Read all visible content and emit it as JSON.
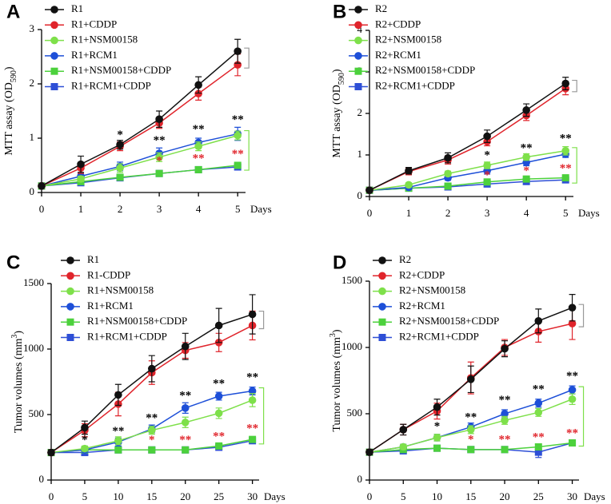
{
  "chart_data": [
    {
      "type": "line",
      "panel_label": "A",
      "y_label": [
        "MTT assay (OD",
        "590",
        ")"
      ],
      "x_label": "Days",
      "x": [
        0,
        1,
        2,
        3,
        4,
        5
      ],
      "xlim": [
        0,
        5.2
      ],
      "xticks": [
        0,
        1,
        2,
        3,
        4,
        5
      ],
      "ylim": [
        0,
        3
      ],
      "yticks": [
        0,
        1,
        2,
        3
      ],
      "series": [
        {
          "name": "R1",
          "color": "#111111",
          "marker": "circle",
          "values": [
            0.12,
            0.52,
            0.88,
            1.35,
            1.98,
            2.6
          ],
          "errors": [
            0.03,
            0.15,
            0.08,
            0.15,
            0.15,
            0.22
          ]
        },
        {
          "name": "R1+CDDP",
          "color": "#e0242b",
          "marker": "circle",
          "values": [
            0.12,
            0.45,
            0.85,
            1.28,
            1.82,
            2.35
          ],
          "errors": [
            0.03,
            0.1,
            0.08,
            0.1,
            0.12,
            0.2
          ]
        },
        {
          "name": "R1+NSM00158",
          "color": "#7ee04a",
          "marker": "circle",
          "values": [
            0.12,
            0.25,
            0.45,
            0.65,
            0.85,
            1.05
          ],
          "errors": [
            0.02,
            0.05,
            0.08,
            0.08,
            0.08,
            0.08
          ]
        },
        {
          "name": "R1+RCM1",
          "color": "#1d4fd8",
          "marker": "circle",
          "values": [
            0.12,
            0.3,
            0.48,
            0.72,
            0.92,
            1.08
          ],
          "errors": [
            0.02,
            0.06,
            0.08,
            0.1,
            0.08,
            0.12
          ]
        },
        {
          "name": "R1+NSM00158+CDDP",
          "color": "#4cd13c",
          "marker": "square",
          "values": [
            0.12,
            0.2,
            0.28,
            0.35,
            0.42,
            0.5
          ],
          "errors": [
            0.02,
            0.03,
            0.04,
            0.04,
            0.05,
            0.05
          ]
        },
        {
          "name": "R1+RCM1+CDDP",
          "color": "#2e4fd6",
          "marker": "square",
          "values": [
            0.12,
            0.18,
            0.27,
            0.35,
            0.42,
            0.47
          ],
          "errors": [
            0.02,
            0.03,
            0.04,
            0.04,
            0.04,
            0.04
          ]
        }
      ],
      "annotations": [
        {
          "text": "*",
          "x": 2,
          "y": 1.05,
          "color": "#000000"
        },
        {
          "text": "**",
          "x": 3,
          "y": 0.95,
          "color": "#000000"
        },
        {
          "text": "**",
          "x": 4,
          "y": 1.15,
          "color": "#000000"
        },
        {
          "text": "**",
          "x": 5,
          "y": 1.33,
          "color": "#000000"
        },
        {
          "text": "*",
          "x": 3,
          "y": 0.57,
          "color": "#e0242b"
        },
        {
          "text": "**",
          "x": 4,
          "y": 0.62,
          "color": "#e0242b"
        },
        {
          "text": "**",
          "x": 5,
          "y": 0.7,
          "color": "#e0242b"
        }
      ]
    },
    {
      "type": "line",
      "panel_label": "B",
      "y_label": [
        "MTT assay (OD",
        "590",
        ")"
      ],
      "x_label": "Days",
      "x": [
        0,
        1,
        2,
        3,
        4,
        5
      ],
      "xlim": [
        0,
        5.2
      ],
      "xticks": [
        0,
        1,
        2,
        3,
        4,
        5
      ],
      "ylim": [
        0,
        4
      ],
      "yticks": [
        0,
        1,
        2,
        3,
        4
      ],
      "series": [
        {
          "name": "R2",
          "color": "#111111",
          "marker": "circle",
          "values": [
            0.15,
            0.62,
            0.93,
            1.45,
            2.08,
            2.72
          ],
          "errors": [
            0.03,
            0.08,
            0.12,
            0.15,
            0.15,
            0.15
          ]
        },
        {
          "name": "R2+CDDP",
          "color": "#e0242b",
          "marker": "circle",
          "values": [
            0.15,
            0.6,
            0.88,
            1.32,
            1.95,
            2.6
          ],
          "errors": [
            0.03,
            0.08,
            0.1,
            0.1,
            0.12,
            0.15
          ]
        },
        {
          "name": "R2+NSM00158",
          "color": "#7ee04a",
          "marker": "circle",
          "values": [
            0.15,
            0.28,
            0.55,
            0.75,
            0.95,
            1.1
          ],
          "errors": [
            0.02,
            0.05,
            0.06,
            0.08,
            0.08,
            0.1
          ]
        },
        {
          "name": "R2+RCM1",
          "color": "#1d4fd8",
          "marker": "circle",
          "values": [
            0.15,
            0.22,
            0.45,
            0.62,
            0.82,
            1.02
          ],
          "errors": [
            0.02,
            0.04,
            0.06,
            0.08,
            0.08,
            0.08
          ]
        },
        {
          "name": "R2+NSM00158+CDDP",
          "color": "#4cd13c",
          "marker": "square",
          "values": [
            0.15,
            0.2,
            0.25,
            0.35,
            0.42,
            0.45
          ],
          "errors": [
            0.02,
            0.03,
            0.04,
            0.04,
            0.04,
            0.04
          ]
        },
        {
          "name": "R2+RCM1+CDDP",
          "color": "#2e4fd6",
          "marker": "square",
          "values": [
            0.15,
            0.2,
            0.23,
            0.3,
            0.36,
            0.4
          ],
          "errors": [
            0.02,
            0.03,
            0.03,
            0.04,
            0.04,
            0.04
          ]
        }
      ],
      "annotations": [
        {
          "text": "*",
          "x": 3,
          "y": 0.98,
          "color": "#000000"
        },
        {
          "text": "**",
          "x": 4,
          "y": 1.15,
          "color": "#000000"
        },
        {
          "text": "**",
          "x": 5,
          "y": 1.38,
          "color": "#000000"
        },
        {
          "text": "*",
          "x": 3,
          "y": 0.5,
          "color": "#e0242b"
        },
        {
          "text": "*",
          "x": 4,
          "y": 0.6,
          "color": "#e0242b"
        },
        {
          "text": "**",
          "x": 5,
          "y": 0.66,
          "color": "#e0242b"
        }
      ]
    },
    {
      "type": "line",
      "panel_label": "C",
      "y_label": [
        "Tumor volumes (mm",
        "3",
        ")"
      ],
      "x_label": "Days",
      "x": [
        0,
        5,
        10,
        15,
        20,
        25,
        30
      ],
      "xlim": [
        0,
        31
      ],
      "xticks": [
        0,
        5,
        10,
        15,
        20,
        25,
        30
      ],
      "ylim": [
        0,
        1500
      ],
      "yticks": [
        0,
        500,
        1000,
        1500
      ],
      "series": [
        {
          "name": "R1",
          "color": "#111111",
          "marker": "circle",
          "values": [
            210,
            400,
            650,
            850,
            1020,
            1180,
            1265
          ],
          "errors": [
            20,
            50,
            80,
            100,
            100,
            130,
            150
          ]
        },
        {
          "name": "R1-CDDP",
          "color": "#e0242b",
          "marker": "circle",
          "values": [
            210,
            380,
            580,
            820,
            990,
            1050,
            1180
          ],
          "errors": [
            20,
            50,
            90,
            90,
            60,
            70,
            110
          ]
        },
        {
          "name": "R1+NSM00158",
          "color": "#7ee04a",
          "marker": "circle",
          "values": [
            210,
            240,
            300,
            380,
            440,
            510,
            610
          ],
          "errors": [
            15,
            20,
            30,
            30,
            40,
            40,
            50
          ]
        },
        {
          "name": "R1+RCM1",
          "color": "#1d4fd8",
          "marker": "circle",
          "values": [
            210,
            230,
            290,
            390,
            550,
            640,
            680
          ],
          "errors": [
            15,
            20,
            30,
            30,
            40,
            30,
            30
          ]
        },
        {
          "name": "R1+NSM00158+CDDP",
          "color": "#4cd13c",
          "marker": "square",
          "values": [
            210,
            230,
            230,
            230,
            230,
            260,
            310
          ],
          "errors": [
            15,
            15,
            15,
            15,
            15,
            15,
            20
          ]
        },
        {
          "name": "R1+RCM1+CDDP",
          "color": "#2e4fd6",
          "marker": "square",
          "values": [
            210,
            210,
            230,
            230,
            230,
            250,
            300
          ],
          "errors": [
            15,
            15,
            15,
            15,
            15,
            15,
            20
          ]
        }
      ],
      "annotations": [
        {
          "text": "*",
          "x": 5,
          "y": 300,
          "color": "#000000"
        },
        {
          "text": "**",
          "x": 10,
          "y": 370,
          "color": "#000000"
        },
        {
          "text": "**",
          "x": 15,
          "y": 470,
          "color": "#000000"
        },
        {
          "text": "**",
          "x": 20,
          "y": 640,
          "color": "#000000"
        },
        {
          "text": "**",
          "x": 25,
          "y": 730,
          "color": "#000000"
        },
        {
          "text": "**",
          "x": 30,
          "y": 780,
          "color": "#000000"
        },
        {
          "text": "*",
          "x": 15,
          "y": 300,
          "color": "#e0242b"
        },
        {
          "text": "**",
          "x": 20,
          "y": 300,
          "color": "#e0242b"
        },
        {
          "text": "**",
          "x": 25,
          "y": 330,
          "color": "#e0242b"
        },
        {
          "text": "**",
          "x": 30,
          "y": 390,
          "color": "#e0242b"
        }
      ]
    },
    {
      "type": "line",
      "panel_label": "D",
      "y_label": [
        "Tumor volumes (mm",
        "3",
        ")"
      ],
      "x_label": "Days",
      "x": [
        0,
        5,
        10,
        15,
        20,
        25,
        30
      ],
      "xlim": [
        0,
        31
      ],
      "xticks": [
        0,
        5,
        10,
        15,
        20,
        25,
        30
      ],
      "ylim": [
        0,
        1500
      ],
      "yticks": [
        0,
        500,
        1000,
        1500
      ],
      "series": [
        {
          "name": "R2",
          "color": "#111111",
          "marker": "circle",
          "values": [
            210,
            380,
            550,
            760,
            990,
            1200,
            1300
          ],
          "errors": [
            20,
            40,
            60,
            100,
            60,
            90,
            100
          ]
        },
        {
          "name": "R2+CDDP",
          "color": "#e0242b",
          "marker": "circle",
          "values": [
            210,
            380,
            520,
            770,
            1000,
            1120,
            1180
          ],
          "errors": [
            20,
            40,
            60,
            120,
            60,
            80,
            120
          ]
        },
        {
          "name": "R2+NSM00158",
          "color": "#7ee04a",
          "marker": "circle",
          "values": [
            210,
            250,
            320,
            380,
            450,
            510,
            610
          ],
          "errors": [
            15,
            20,
            25,
            30,
            30,
            30,
            40
          ]
        },
        {
          "name": "R2+RCM1",
          "color": "#1d4fd8",
          "marker": "circle",
          "values": [
            210,
            250,
            320,
            400,
            500,
            580,
            680
          ],
          "errors": [
            15,
            20,
            25,
            30,
            30,
            30,
            30
          ]
        },
        {
          "name": "R2+NSM00158+CDDP",
          "color": "#4cd13c",
          "marker": "square",
          "values": [
            210,
            230,
            240,
            230,
            230,
            250,
            280
          ],
          "errors": [
            15,
            15,
            15,
            15,
            15,
            15,
            20
          ]
        },
        {
          "name": "R2+RCM1+CDDP",
          "color": "#2e4fd6",
          "marker": "square",
          "values": [
            210,
            220,
            240,
            230,
            230,
            210,
            280
          ],
          "errors": [
            15,
            15,
            15,
            15,
            15,
            40,
            20
          ]
        }
      ],
      "annotations": [
        {
          "text": "*",
          "x": 10,
          "y": 400,
          "color": "#000000"
        },
        {
          "text": "**",
          "x": 15,
          "y": 470,
          "color": "#000000"
        },
        {
          "text": "**",
          "x": 20,
          "y": 600,
          "color": "#000000"
        },
        {
          "text": "**",
          "x": 25,
          "y": 680,
          "color": "#000000"
        },
        {
          "text": "**",
          "x": 30,
          "y": 780,
          "color": "#000000"
        },
        {
          "text": "*",
          "x": 15,
          "y": 300,
          "color": "#e0242b"
        },
        {
          "text": "**",
          "x": 20,
          "y": 300,
          "color": "#e0242b"
        },
        {
          "text": "**",
          "x": 25,
          "y": 320,
          "color": "#e0242b"
        },
        {
          "text": "**",
          "x": 30,
          "y": 350,
          "color": "#e0242b"
        }
      ]
    }
  ]
}
